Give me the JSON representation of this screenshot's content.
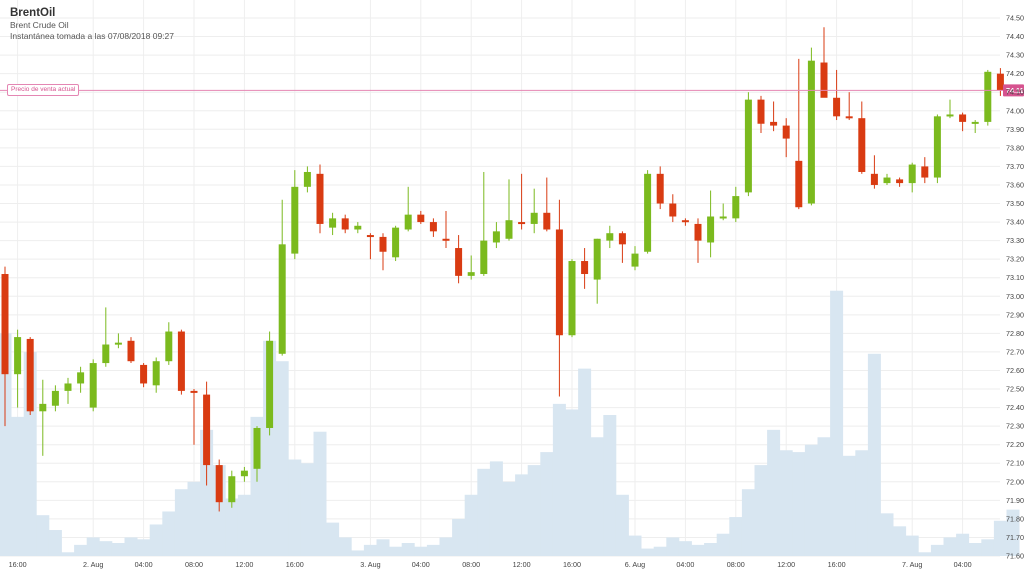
{
  "header": {
    "title": "BrentOil",
    "subtitle": "Brent Crude Oil",
    "snapshot": "Instantánea tomada a las 07/08/2018 09:27"
  },
  "current_price_label": "Precio de venta actual",
  "colors": {
    "up": "#7bba1e",
    "down": "#d93b12",
    "volume": "#d8e6f1",
    "grid": "#eeeeee",
    "price_line": "#e486b3",
    "price_badge": "#d6538f"
  },
  "chart_data": {
    "type": "candlestick",
    "ylim": [
      71.6,
      74.5
    ],
    "yticks": [
      71.6,
      71.7,
      71.8,
      71.9,
      72.0,
      72.1,
      72.2,
      72.3,
      72.4,
      72.5,
      72.6,
      72.7,
      72.8,
      72.9,
      73.0,
      73.1,
      73.2,
      73.3,
      73.4,
      73.5,
      73.6,
      73.7,
      73.8,
      73.9,
      74.0,
      74.1,
      74.2,
      74.3,
      74.4,
      74.5
    ],
    "ytick_labels": [
      "71.60",
      "71.70",
      "71.80",
      "71.90",
      "72.00",
      "72.10",
      "72.20",
      "72.30",
      "72.40",
      "72.50",
      "72.60",
      "72.70",
      "72.80",
      "72.90",
      "73.00",
      "73.10",
      "73.20",
      "73.30",
      "73.40",
      "73.50",
      "73.60",
      "73.70",
      "73.80",
      "73.90",
      "74.00",
      "74.10",
      "74.20",
      "74.30",
      "74.40",
      "74.50"
    ],
    "current_price": 74.11,
    "current_price_text": "74.11",
    "xtick_labels": [
      {
        "i": 1,
        "label": "16:00"
      },
      {
        "i": 7,
        "label": "2. Aug"
      },
      {
        "i": 11,
        "label": "04:00"
      },
      {
        "i": 15,
        "label": "08:00"
      },
      {
        "i": 19,
        "label": "12:00"
      },
      {
        "i": 23,
        "label": "16:00"
      },
      {
        "i": 29,
        "label": "3. Aug"
      },
      {
        "i": 33,
        "label": "04:00"
      },
      {
        "i": 37,
        "label": "08:00"
      },
      {
        "i": 41,
        "label": "12:00"
      },
      {
        "i": 45,
        "label": "16:00"
      },
      {
        "i": 50,
        "label": "6. Aug"
      },
      {
        "i": 54,
        "label": "04:00"
      },
      {
        "i": 58,
        "label": "08:00"
      },
      {
        "i": 62,
        "label": "12:00"
      },
      {
        "i": 66,
        "label": "16:00"
      },
      {
        "i": 72,
        "label": "7. Aug"
      },
      {
        "i": 76,
        "label": "04:00"
      }
    ],
    "candles": [
      [
        73.12,
        73.16,
        72.3,
        72.58
      ],
      [
        72.58,
        72.82,
        72.4,
        72.78
      ],
      [
        72.77,
        72.78,
        72.36,
        72.38
      ],
      [
        72.38,
        72.55,
        72.14,
        72.42
      ],
      [
        72.41,
        72.52,
        72.38,
        72.49
      ],
      [
        72.49,
        72.56,
        72.42,
        72.53
      ],
      [
        72.53,
        72.62,
        72.48,
        72.59
      ],
      [
        72.4,
        72.66,
        72.38,
        72.64
      ],
      [
        72.64,
        72.94,
        72.62,
        72.74
      ],
      [
        72.74,
        72.8,
        72.72,
        72.75
      ],
      [
        72.76,
        72.78,
        72.64,
        72.65
      ],
      [
        72.63,
        72.64,
        72.51,
        72.53
      ],
      [
        72.52,
        72.67,
        72.48,
        72.65
      ],
      [
        72.65,
        72.86,
        72.63,
        72.81
      ],
      [
        72.81,
        72.82,
        72.47,
        72.49
      ],
      [
        72.49,
        72.5,
        72.2,
        72.48
      ],
      [
        72.47,
        72.54,
        71.98,
        72.09
      ],
      [
        72.09,
        72.12,
        71.84,
        71.89
      ],
      [
        71.89,
        72.06,
        71.86,
        72.03
      ],
      [
        72.03,
        72.08,
        72.0,
        72.06
      ],
      [
        72.07,
        72.3,
        72.0,
        72.29
      ],
      [
        72.29,
        72.81,
        72.25,
        72.76
      ],
      [
        72.69,
        73.52,
        72.68,
        73.28
      ],
      [
        73.23,
        73.68,
        73.2,
        73.59
      ],
      [
        73.59,
        73.7,
        73.56,
        73.67
      ],
      [
        73.66,
        73.71,
        73.34,
        73.39
      ],
      [
        73.37,
        73.45,
        73.33,
        73.42
      ],
      [
        73.42,
        73.44,
        73.34,
        73.36
      ],
      [
        73.36,
        73.4,
        73.34,
        73.38
      ],
      [
        73.33,
        73.34,
        73.2,
        73.32
      ],
      [
        73.32,
        73.34,
        73.14,
        73.24
      ],
      [
        73.21,
        73.38,
        73.19,
        73.37
      ],
      [
        73.36,
        73.59,
        73.35,
        73.44
      ],
      [
        73.44,
        73.46,
        73.39,
        73.4
      ],
      [
        73.4,
        73.42,
        73.32,
        73.35
      ],
      [
        73.31,
        73.46,
        73.26,
        73.3
      ],
      [
        73.26,
        73.33,
        73.07,
        73.11
      ],
      [
        73.11,
        73.22,
        73.09,
        73.13
      ],
      [
        73.12,
        73.67,
        73.11,
        73.3
      ],
      [
        73.29,
        73.4,
        73.26,
        73.35
      ],
      [
        73.31,
        73.63,
        73.3,
        73.41
      ],
      [
        73.4,
        73.66,
        73.36,
        73.39
      ],
      [
        73.39,
        73.58,
        73.34,
        73.45
      ],
      [
        73.45,
        73.64,
        73.35,
        73.36
      ],
      [
        73.36,
        73.52,
        72.46,
        72.79
      ],
      [
        72.79,
        73.2,
        72.78,
        73.19
      ],
      [
        73.19,
        73.26,
        73.04,
        73.12
      ],
      [
        73.09,
        73.31,
        72.96,
        73.31
      ],
      [
        73.3,
        73.38,
        73.26,
        73.34
      ],
      [
        73.34,
        73.35,
        73.18,
        73.28
      ],
      [
        73.16,
        73.27,
        73.14,
        73.23
      ],
      [
        73.24,
        73.68,
        73.23,
        73.66
      ],
      [
        73.66,
        73.7,
        73.47,
        73.5
      ],
      [
        73.5,
        73.55,
        73.4,
        73.43
      ],
      [
        73.41,
        73.42,
        73.38,
        73.4
      ],
      [
        73.39,
        73.42,
        73.18,
        73.3
      ],
      [
        73.29,
        73.57,
        73.21,
        73.43
      ],
      [
        73.43,
        73.5,
        73.41,
        73.43
      ],
      [
        73.42,
        73.59,
        73.4,
        73.54
      ],
      [
        73.56,
        74.1,
        73.54,
        74.06
      ],
      [
        74.06,
        74.08,
        73.88,
        73.93
      ],
      [
        73.94,
        74.05,
        73.89,
        73.92
      ],
      [
        73.92,
        73.96,
        73.75,
        73.85
      ],
      [
        73.73,
        74.28,
        73.47,
        73.48
      ],
      [
        73.5,
        74.34,
        73.49,
        74.27
      ],
      [
        74.26,
        74.45,
        74.08,
        74.07
      ],
      [
        74.07,
        74.22,
        73.95,
        73.97
      ],
      [
        73.97,
        74.1,
        73.95,
        73.96
      ],
      [
        73.96,
        74.05,
        73.66,
        73.67
      ],
      [
        73.66,
        73.76,
        73.58,
        73.6
      ],
      [
        73.61,
        73.66,
        73.6,
        73.64
      ],
      [
        73.63,
        73.64,
        73.59,
        73.61
      ],
      [
        73.61,
        73.72,
        73.56,
        73.71
      ],
      [
        73.7,
        73.75,
        73.61,
        73.64
      ],
      [
        73.64,
        73.98,
        73.61,
        73.97
      ],
      [
        73.97,
        74.06,
        73.96,
        73.98
      ],
      [
        73.98,
        73.99,
        73.89,
        73.94
      ],
      [
        73.93,
        73.95,
        73.88,
        73.94
      ],
      [
        73.94,
        74.22,
        73.92,
        74.21
      ],
      [
        74.2,
        74.23,
        74.08,
        74.11
      ]
    ],
    "volume_levels": [
      72.8,
      72.35,
      72.7,
      71.82,
      71.74,
      71.62,
      71.66,
      71.7,
      71.68,
      71.67,
      71.7,
      71.69,
      71.77,
      71.84,
      71.96,
      72.0,
      72.28,
      72.09,
      71.91,
      71.93,
      72.35,
      72.76,
      72.65,
      72.12,
      72.1,
      72.27,
      71.78,
      71.7,
      71.63,
      71.66,
      71.69,
      71.65,
      71.67,
      71.65,
      71.66,
      71.7,
      71.8,
      71.93,
      72.07,
      72.11,
      72.0,
      72.04,
      72.09,
      72.16,
      72.42,
      72.39,
      72.61,
      72.24,
      72.36,
      71.93,
      71.71,
      71.64,
      71.65,
      71.7,
      71.68,
      71.66,
      71.67,
      71.72,
      71.81,
      71.96,
      72.09,
      72.28,
      72.17,
      72.16,
      72.2,
      72.24,
      73.03,
      72.14,
      72.17,
      72.69,
      71.83,
      71.76,
      71.71,
      71.62,
      71.66,
      71.7,
      71.72,
      71.67,
      71.69,
      71.79,
      71.85
    ]
  }
}
